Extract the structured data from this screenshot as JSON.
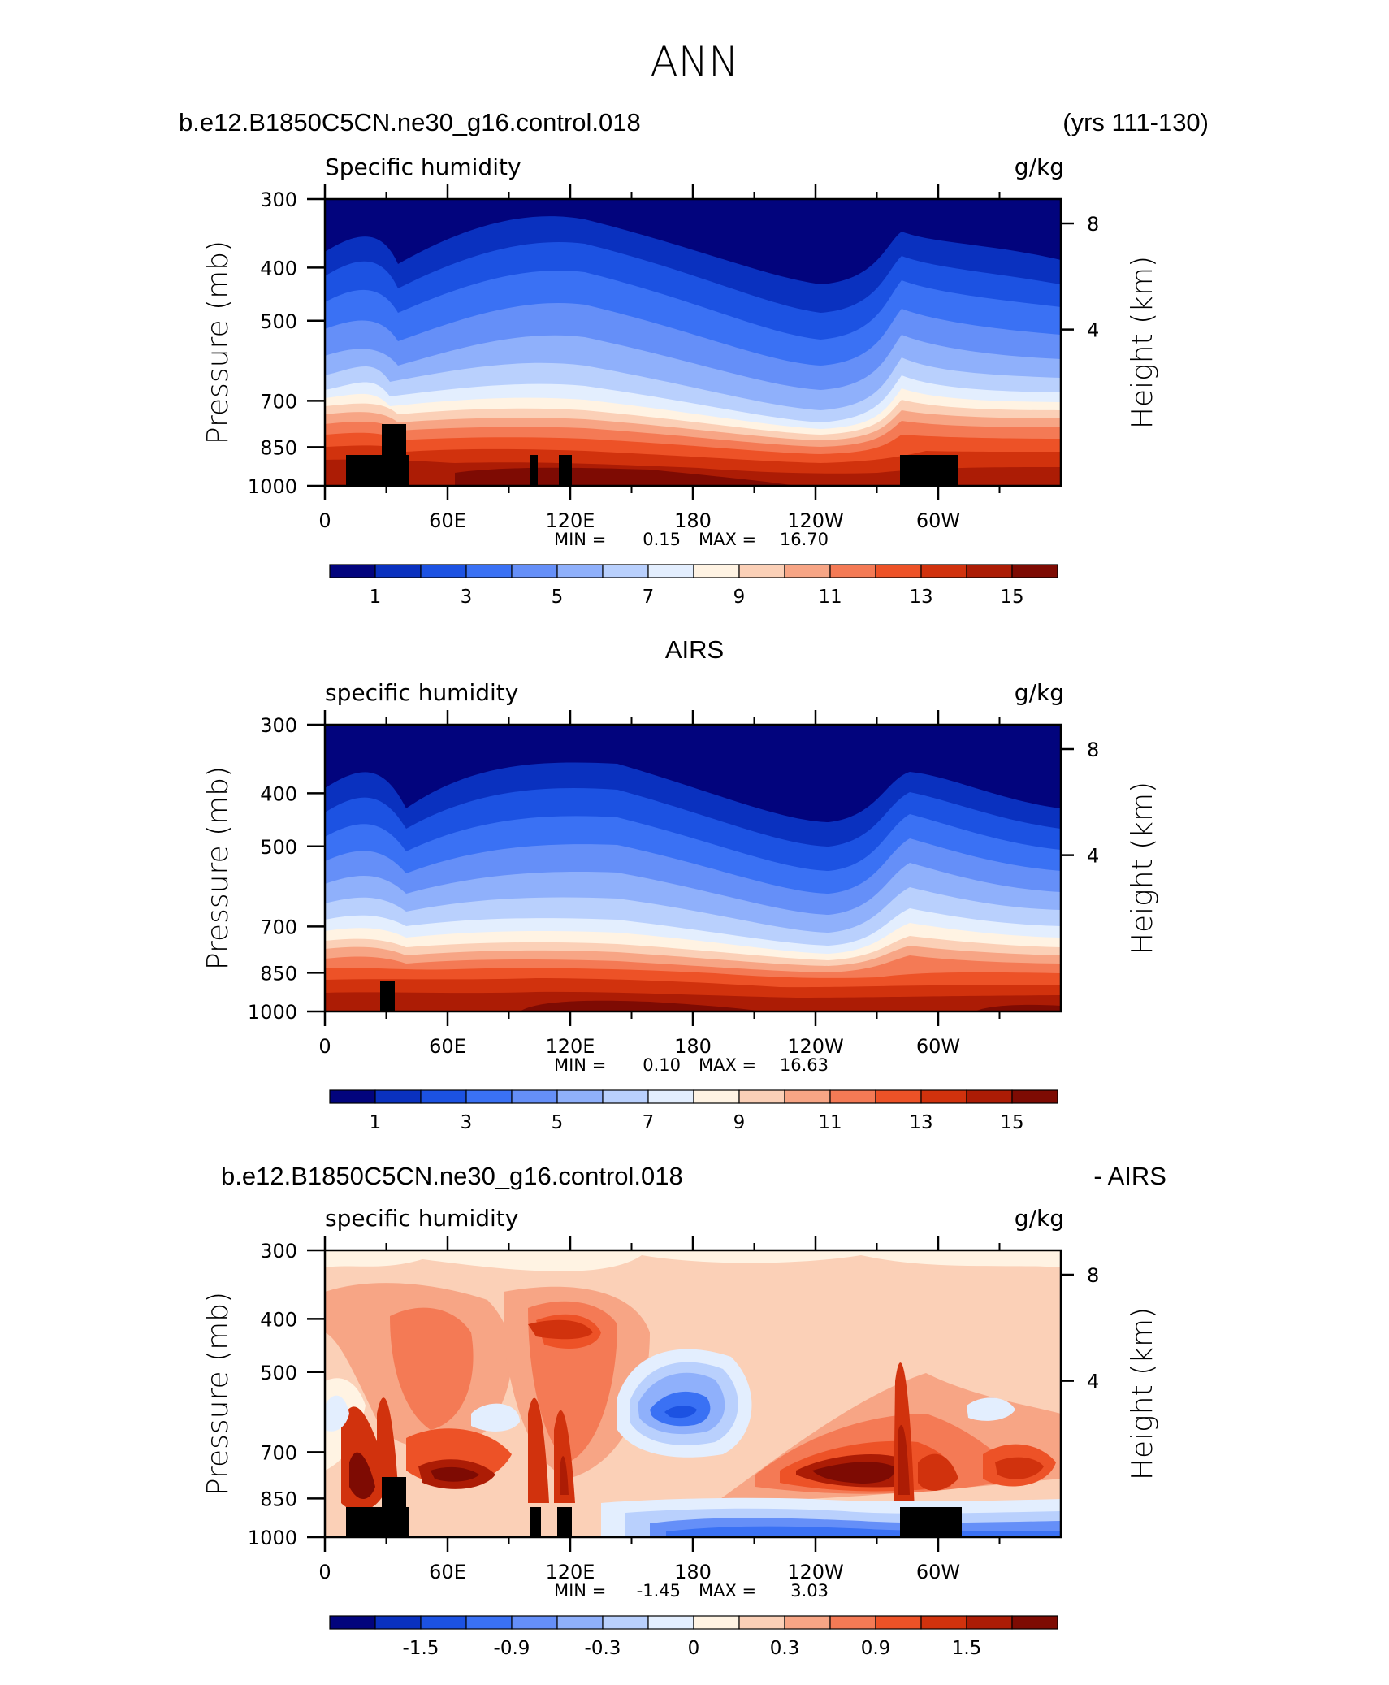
{
  "title": "ANN",
  "chart_data": [
    {
      "type": "heatmap",
      "header_left": "b.e12.B1850C5CN.ne30_g16.control.018",
      "header_right": "(yrs 111-130)",
      "variable_label": "Specific humidity",
      "units_label": "g/kg",
      "ylabel": "Pressure (mb)",
      "ylabel_right": "Height (km)",
      "y_ticks": [
        "300",
        "400",
        "500",
        "700",
        "850",
        "1000"
      ],
      "y_right_ticks": [
        "8",
        "4"
      ],
      "x_ticks": [
        "0",
        "60E",
        "120E",
        "180",
        "120W",
        "60W"
      ],
      "min_label": "MIN =",
      "min_value": "0.15",
      "max_label": "MAX =",
      "max_value": "16.70",
      "colorbar_labels": [
        "1",
        "3",
        "5",
        "7",
        "9",
        "11",
        "13",
        "15"
      ],
      "colorbar_colors": [
        "#02047d",
        "#0a31bf",
        "#1c52e2",
        "#3a71f4",
        "#658ff8",
        "#8fb0fb",
        "#b9d0fd",
        "#e3eefe",
        "#fff3e3",
        "#fbd0b7",
        "#f7a585",
        "#f47a55",
        "#ed5227",
        "#d1320d",
        "#ac1c05",
        "#7e0b03"
      ]
    },
    {
      "type": "heatmap",
      "header_center": "AIRS",
      "variable_label": "specific humidity",
      "units_label": "g/kg",
      "ylabel": "Pressure (mb)",
      "ylabel_right": "Height (km)",
      "y_ticks": [
        "300",
        "400",
        "500",
        "700",
        "850",
        "1000"
      ],
      "y_right_ticks": [
        "8",
        "4"
      ],
      "x_ticks": [
        "0",
        "60E",
        "120E",
        "180",
        "120W",
        "60W"
      ],
      "min_label": "MIN =",
      "min_value": "0.10",
      "max_label": "MAX =",
      "max_value": "16.63",
      "colorbar_labels": [
        "1",
        "3",
        "5",
        "7",
        "9",
        "11",
        "13",
        "15"
      ],
      "colorbar_colors": [
        "#02047d",
        "#0a31bf",
        "#1c52e2",
        "#3a71f4",
        "#658ff8",
        "#8fb0fb",
        "#b9d0fd",
        "#e3eefe",
        "#fff3e3",
        "#fbd0b7",
        "#f7a585",
        "#f47a55",
        "#ed5227",
        "#d1320d",
        "#ac1c05",
        "#7e0b03"
      ]
    },
    {
      "type": "heatmap",
      "header_left": "b.e12.B1850C5CN.ne30_g16.control.018",
      "header_right": "- AIRS",
      "variable_label": "specific humidity",
      "units_label": "g/kg",
      "ylabel": "Pressure (mb)",
      "ylabel_right": "Height (km)",
      "y_ticks": [
        "300",
        "400",
        "500",
        "700",
        "850",
        "1000"
      ],
      "y_right_ticks": [
        "8",
        "4"
      ],
      "x_ticks": [
        "0",
        "60E",
        "120E",
        "180",
        "120W",
        "60W"
      ],
      "min_label": "MIN =",
      "min_value": "-1.45",
      "max_label": "MAX =",
      "max_value": "3.03",
      "colorbar_labels": [
        "-1.5",
        "-0.9",
        "-0.3",
        "0",
        "0.3",
        "0.9",
        "1.5"
      ],
      "colorbar_colors": [
        "#02047d",
        "#0a31bf",
        "#1c52e2",
        "#3a71f4",
        "#658ff8",
        "#8fb0fb",
        "#b9d0fd",
        "#e3eefe",
        "#fff3e3",
        "#fbd0b7",
        "#f7a585",
        "#f47a55",
        "#ed5227",
        "#d1320d",
        "#ac1c05",
        "#7e0b03"
      ]
    }
  ]
}
